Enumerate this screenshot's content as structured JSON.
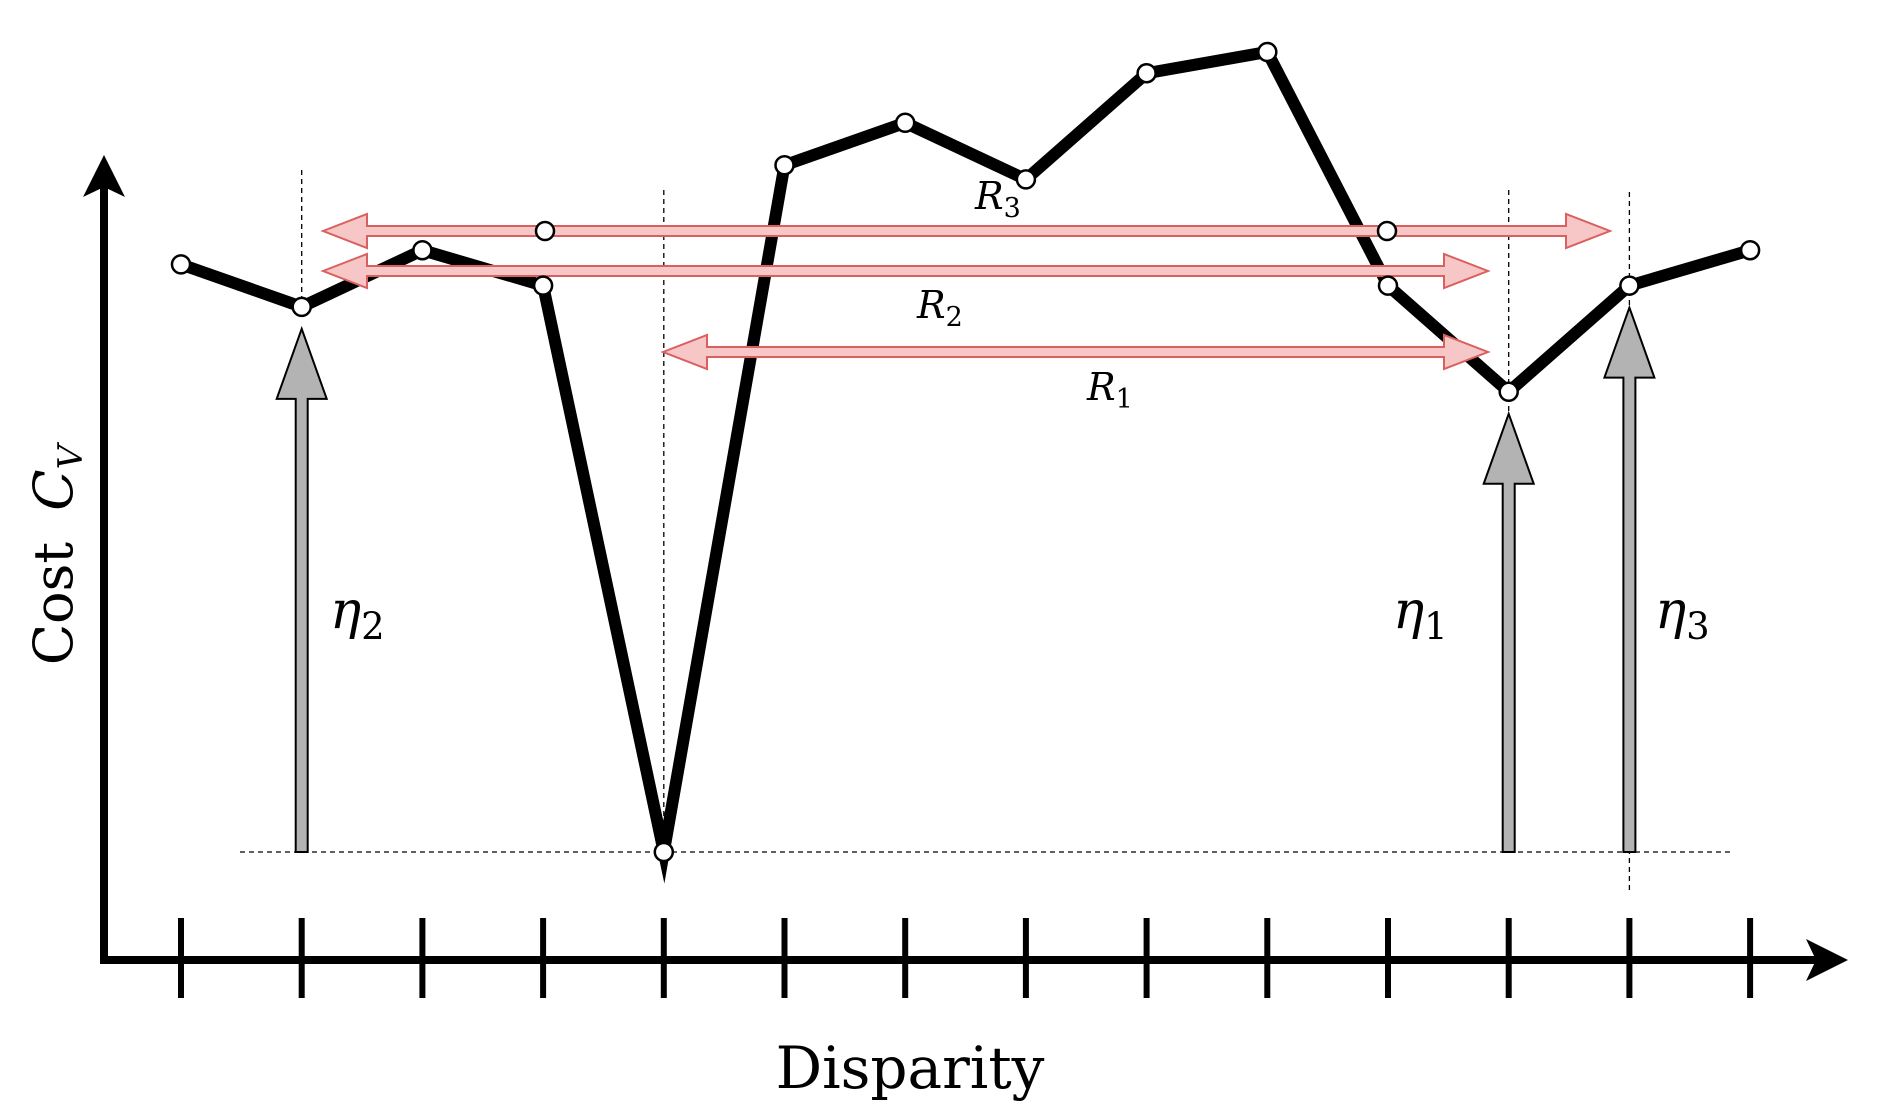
{
  "diagram": {
    "y_axis_label": "Cost",
    "y_axis_symbol": "C",
    "y_axis_symbol_sub": "V",
    "x_axis_label": "Disparity",
    "tick_count": 14,
    "curve": {
      "points": [
        {
          "d": 1,
          "c": 0.83
        },
        {
          "d": 2,
          "c": 0.77
        },
        {
          "d": 3,
          "c": 0.85
        },
        {
          "d": 4,
          "c": 0.8
        },
        {
          "d": 5,
          "c": 0.0
        },
        {
          "d": 6,
          "c": 0.97
        },
        {
          "d": 7,
          "c": 1.03
        },
        {
          "d": 8,
          "c": 0.95
        },
        {
          "d": 9,
          "c": 1.1
        },
        {
          "d": 10,
          "c": 1.13
        },
        {
          "d": 11,
          "c": 0.8
        },
        {
          "d": 12,
          "c": 0.65
        },
        {
          "d": 13,
          "c": 0.8
        },
        {
          "d": 14,
          "c": 0.85
        }
      ]
    },
    "baseline_cost": 0.0,
    "eta_arrows": [
      {
        "name": "eta1",
        "symbol": "η",
        "sub": "1",
        "d": 12,
        "c": 0.65
      },
      {
        "name": "eta2",
        "symbol": "η",
        "sub": "2",
        "d": 2,
        "c": 0.77
      },
      {
        "name": "eta3",
        "symbol": "η",
        "sub": "3",
        "d": 13,
        "c": 0.8
      }
    ],
    "ranges": [
      {
        "name": "R1",
        "symbol": "R",
        "sub": "1",
        "from_d": 5,
        "to_d": 12,
        "c": 0.65
      },
      {
        "name": "R2",
        "symbol": "R",
        "sub": "2",
        "from_d": 2,
        "to_d": 12,
        "c": 0.77
      },
      {
        "name": "R3",
        "symbol": "R",
        "sub": "3",
        "from_d": 2,
        "to_d": 13,
        "c": 0.83
      }
    ],
    "colors": {
      "curve": "#000000",
      "point_fill": "#ffffff",
      "eta_fill": "#b3b3b3",
      "range_fill": "#f7c6c6",
      "range_stroke": "#d9605e"
    }
  }
}
